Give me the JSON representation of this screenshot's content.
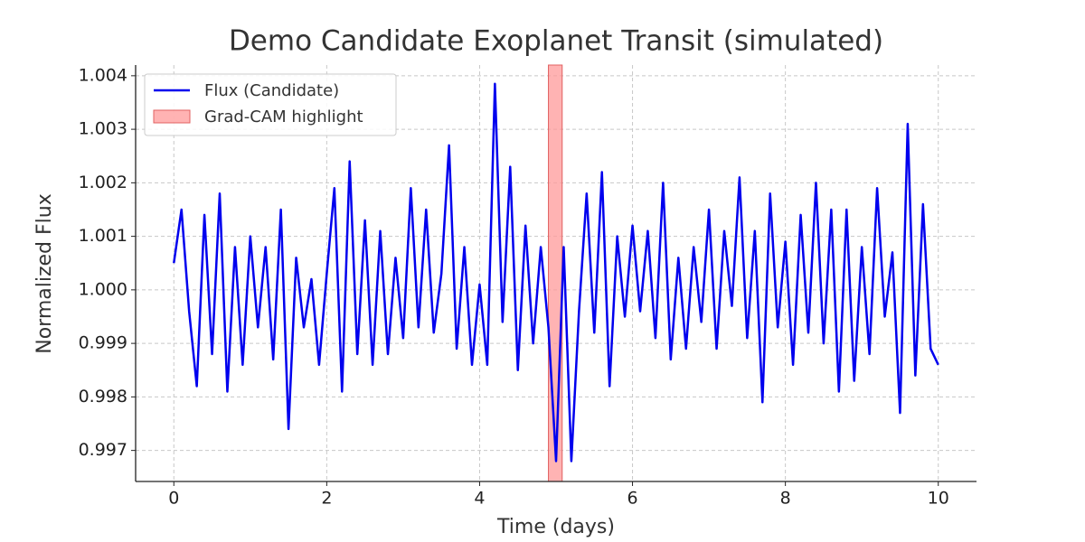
{
  "chart_data": {
    "type": "line",
    "title": "Demo Candidate Exoplanet Transit (simulated)",
    "x_label": "Time (days)",
    "y_label": "Normalized Flux",
    "x": [
      0,
      0.1,
      0.2,
      0.3,
      0.4,
      0.5,
      0.6,
      0.7,
      0.8,
      0.9,
      1,
      1.1,
      1.2,
      1.3,
      1.4,
      1.5,
      1.6,
      1.7,
      1.8,
      1.9,
      2,
      2.1,
      2.2,
      2.3,
      2.4,
      2.5,
      2.6,
      2.7,
      2.8,
      2.9,
      3,
      3.1,
      3.2,
      3.3,
      3.4,
      3.5,
      3.6,
      3.7,
      3.8,
      3.9,
      4,
      4.1,
      4.2,
      4.3,
      4.4,
      4.5,
      4.6,
      4.7,
      4.8,
      4.9,
      5,
      5.1,
      5.2,
      5.3,
      5.4,
      5.5,
      5.6,
      5.7,
      5.8,
      5.9,
      6,
      6.1,
      6.2,
      6.3,
      6.4,
      6.5,
      6.6,
      6.7,
      6.8,
      6.9,
      7,
      7.1,
      7.2,
      7.3,
      7.4,
      7.5,
      7.6,
      7.7,
      7.8,
      7.9,
      8,
      8.1,
      8.2,
      8.3,
      8.4,
      8.5,
      8.6,
      8.7,
      8.8,
      8.9,
      9,
      9.1,
      9.2,
      9.3,
      9.4,
      9.5,
      9.6,
      9.7,
      9.8,
      9.9,
      10
    ],
    "series": [
      {
        "name": "Flux (Candidate)",
        "color": "#0000ee",
        "values": [
          1.0005,
          1.0015,
          0.9996,
          0.9982,
          1.0014,
          0.9988,
          1.0018,
          0.9981,
          1.0008,
          0.9986,
          1.001,
          0.9993,
          1.0008,
          0.9987,
          1.0015,
          0.9974,
          1.0006,
          0.9993,
          1.0002,
          0.9986,
          1.0003,
          1.0019,
          0.9981,
          1.0024,
          0.9988,
          1.0013,
          0.9986,
          1.0011,
          0.9988,
          1.0006,
          0.9991,
          1.0019,
          0.9993,
          1.0015,
          0.9992,
          1.0003,
          1.0027,
          0.9989,
          1.0008,
          0.9986,
          1.0001,
          0.9986,
          1.00385,
          0.9994,
          1.0023,
          0.9985,
          1.0012,
          0.999,
          1.0008,
          0.9993,
          0.9968,
          1.0008,
          0.9968,
          0.9996,
          1.0018,
          0.9992,
          1.0022,
          0.9982,
          1.001,
          0.9995,
          1.0012,
          0.9996,
          1.0011,
          0.9991,
          1.002,
          0.9987,
          1.0006,
          0.9989,
          1.0008,
          0.9994,
          1.0015,
          0.9989,
          1.0011,
          0.9997,
          1.0021,
          0.9991,
          1.0011,
          0.9979,
          1.0018,
          0.9993,
          1.0009,
          0.9986,
          1.0014,
          0.9992,
          1.002,
          0.999,
          1.0015,
          0.9981,
          1.0015,
          0.9983,
          1.0008,
          0.9988,
          1.0019,
          0.9995,
          1.0007,
          0.9977,
          1.0031,
          0.9984,
          1.0016,
          0.9989,
          0.9986
        ]
      }
    ],
    "highlight": {
      "name": "Grad-CAM highlight",
      "x_range": [
        4.9,
        5.08
      ],
      "color": "#ff9999"
    },
    "xlim": [
      -0.5,
      10.5
    ],
    "xticks": [
      0,
      2,
      4,
      6,
      8,
      10
    ],
    "ylim": [
      0.99642,
      1.0042
    ],
    "yticks": [
      0.997,
      0.998,
      0.999,
      {
        "value": 1,
        "label": "1.000"
      },
      1.001,
      1.002,
      1.003,
      1.004
    ],
    "grid": true,
    "legend": "upper left"
  }
}
